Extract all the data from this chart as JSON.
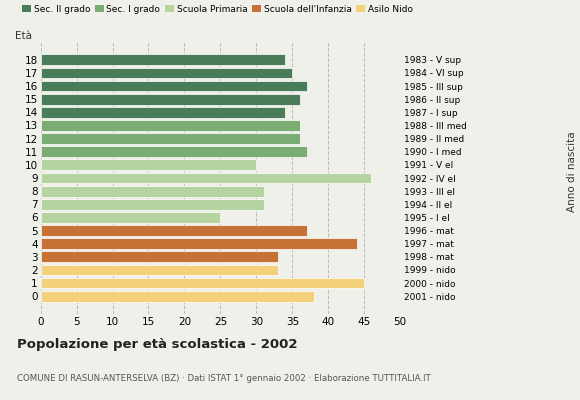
{
  "ages": [
    18,
    17,
    16,
    15,
    14,
    13,
    12,
    11,
    10,
    9,
    8,
    7,
    6,
    5,
    4,
    3,
    2,
    1,
    0
  ],
  "values": [
    34,
    35,
    37,
    36,
    34,
    36,
    36,
    37,
    30,
    46,
    31,
    31,
    25,
    37,
    44,
    33,
    33,
    45,
    38
  ],
  "right_labels": [
    "1983 - V sup",
    "1984 - VI sup",
    "1985 - III sup",
    "1986 - II sup",
    "1987 - I sup",
    "1988 - III med",
    "1989 - II med",
    "1990 - I med",
    "1991 - V el",
    "1992 - IV el",
    "1993 - III el",
    "1994 - II el",
    "1995 - I el",
    "1996 - mat",
    "1997 - mat",
    "1998 - mat",
    "1999 - nido",
    "2000 - nido",
    "2001 - nido"
  ],
  "colors_by_age": {
    "18": "#4a7c59",
    "17": "#4a7c59",
    "16": "#4a7c59",
    "15": "#4a7c59",
    "14": "#4a7c59",
    "13": "#7aad72",
    "12": "#7aad72",
    "11": "#7aad72",
    "10": "#b5d4a0",
    "9": "#b5d4a0",
    "8": "#b5d4a0",
    "7": "#b5d4a0",
    "6": "#b5d4a0",
    "5": "#c87137",
    "4": "#c87137",
    "3": "#c87137",
    "2": "#f5d07a",
    "1": "#f5d07a",
    "0": "#f5d07a"
  },
  "title": "Popolazione per età scolastica - 2002",
  "subtitle": "COMUNE DI RASUN-ANTERSELVA (BZ) · Dati ISTAT 1° gennaio 2002 · Elaborazione TUTTITALIA.IT",
  "label_eta": "Età",
  "label_anno": "Anno di nascita",
  "xlim": [
    0,
    50
  ],
  "xticks": [
    0,
    5,
    10,
    15,
    20,
    25,
    30,
    35,
    40,
    45,
    50
  ],
  "background_color": "#f0f0eb",
  "grid_color": "#bbbbbb",
  "bar_height": 0.82,
  "legend_colors": [
    "#4a7c59",
    "#7aad72",
    "#b5d4a0",
    "#c87137",
    "#f5d07a"
  ],
  "legend_labels": [
    "Sec. II grado",
    "Sec. I grado",
    "Scuola Primaria",
    "Scuola dell'Infanzia",
    "Asilo Nido"
  ]
}
